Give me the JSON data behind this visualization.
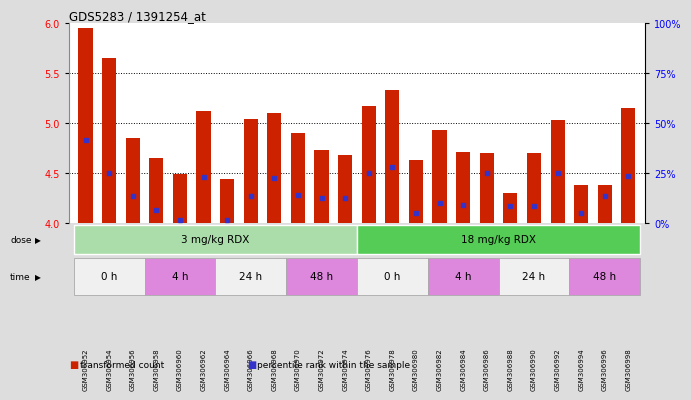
{
  "title": "GDS5283 / 1391254_at",
  "samples": [
    "GSM306952",
    "GSM306954",
    "GSM306956",
    "GSM306958",
    "GSM306960",
    "GSM306962",
    "GSM306964",
    "GSM306966",
    "GSM306968",
    "GSM306970",
    "GSM306972",
    "GSM306974",
    "GSM306976",
    "GSM306978",
    "GSM306980",
    "GSM306982",
    "GSM306984",
    "GSM306986",
    "GSM306988",
    "GSM306990",
    "GSM306992",
    "GSM306994",
    "GSM306996",
    "GSM306998"
  ],
  "bar_values": [
    5.95,
    5.65,
    4.85,
    4.65,
    4.49,
    5.12,
    4.44,
    5.04,
    5.1,
    4.9,
    4.73,
    4.68,
    5.17,
    5.33,
    4.63,
    4.93,
    4.71,
    4.7,
    4.3,
    4.7,
    5.03,
    4.38,
    4.38,
    5.15
  ],
  "blue_dot_values": [
    4.83,
    4.5,
    4.27,
    4.13,
    4.03,
    4.46,
    4.03,
    4.27,
    4.45,
    4.28,
    4.25,
    4.25,
    4.5,
    4.56,
    4.1,
    4.2,
    4.18,
    4.5,
    4.17,
    4.17,
    4.5,
    4.1,
    4.27,
    4.47
  ],
  "ylim": [
    4.0,
    6.0
  ],
  "yticks": [
    4.0,
    4.5,
    5.0,
    5.5,
    6.0
  ],
  "right_yticks": [
    0,
    25,
    50,
    75,
    100
  ],
  "bar_color": "#cc2200",
  "dot_color": "#3333cc",
  "bar_width": 0.6,
  "dose_labels": [
    {
      "text": "3 mg/kg RDX",
      "start": 0,
      "end": 11,
      "color": "#aaddaa"
    },
    {
      "text": "18 mg/kg RDX",
      "start": 12,
      "end": 23,
      "color": "#55cc55"
    }
  ],
  "time_labels": [
    {
      "text": "0 h",
      "start": 0,
      "end": 2,
      "color": "#f0f0f0"
    },
    {
      "text": "4 h",
      "start": 3,
      "end": 5,
      "color": "#dd88dd"
    },
    {
      "text": "24 h",
      "start": 6,
      "end": 8,
      "color": "#f0f0f0"
    },
    {
      "text": "48 h",
      "start": 9,
      "end": 11,
      "color": "#dd88dd"
    },
    {
      "text": "0 h",
      "start": 12,
      "end": 14,
      "color": "#f0f0f0"
    },
    {
      "text": "4 h",
      "start": 15,
      "end": 17,
      "color": "#dd88dd"
    },
    {
      "text": "24 h",
      "start": 18,
      "end": 20,
      "color": "#f0f0f0"
    },
    {
      "text": "48 h",
      "start": 21,
      "end": 23,
      "color": "#dd88dd"
    }
  ],
  "legend_items": [
    {
      "color": "#cc2200",
      "label": "transformed count"
    },
    {
      "color": "#3333cc",
      "label": "percentile rank within the sample"
    }
  ],
  "bg_color": "#dddddd",
  "plot_bg": "#ffffff",
  "n_samples": 24
}
